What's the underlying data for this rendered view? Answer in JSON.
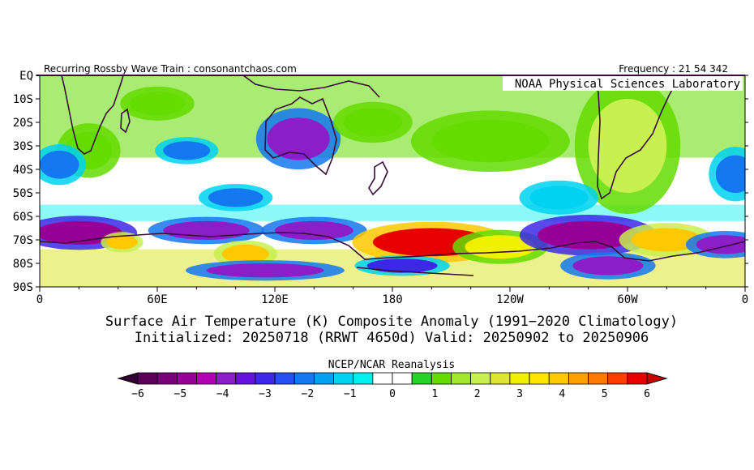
{
  "chart_data": {
    "type": "heatmap",
    "header_left": "Recurring Rossby Wave Train : consonantchaos.com",
    "header_right": "Frequency : 21 54 342",
    "lab": "NOAA Physical Sciences Laboratory",
    "title_line1": "Surface Air Temperature (K) Composite Anomaly (1991−2020 Climatology)",
    "title_line2": "Initialized: 20250718 (RRWT 4650d) Valid: 20250902 to 20250906",
    "source": "NCEP/NCAR Reanalysis",
    "y_ticks": [
      "EQ",
      "10S",
      "20S",
      "30S",
      "40S",
      "50S",
      "60S",
      "70S",
      "80S",
      "90S"
    ],
    "x_ticks": [
      "0",
      "60E",
      "120E",
      "180",
      "120W",
      "60W",
      "0"
    ],
    "colorbar_ticks": [
      "−6",
      "−5",
      "−4",
      "−3",
      "−2",
      "−1",
      "0",
      "1",
      "2",
      "3",
      "4",
      "5",
      "6"
    ],
    "colorbar_colors": [
      "#5a005a",
      "#780078",
      "#960096",
      "#b400b4",
      "#8c1ec8",
      "#6414dc",
      "#3c28e6",
      "#2850f0",
      "#1478f0",
      "#00a0f0",
      "#00d2f0",
      "#00f0f0",
      "#ffffff",
      "#ffffff",
      "#28d228",
      "#64dc00",
      "#a0e632",
      "#c8f050",
      "#dce632",
      "#f0f000",
      "#ffe600",
      "#ffc800",
      "#ffa000",
      "#ff7800",
      "#ff3c00",
      "#e60000"
    ],
    "xlim": [
      0,
      360
    ],
    "ylim": [
      -90,
      0
    ],
    "anomaly_regions": [
      {
        "lon": 20,
        "lat": -67,
        "rx": 22,
        "ry": 5,
        "value": -5
      },
      {
        "lon": 85,
        "lat": -66,
        "rx": 22,
        "ry": 4,
        "value": -4
      },
      {
        "lon": 140,
        "lat": -66,
        "rx": 20,
        "ry": 4,
        "value": -4
      },
      {
        "lon": 105,
        "lat": -76,
        "rx": 12,
        "ry": 4,
        "value": 4
      },
      {
        "lon": 42,
        "lat": -71,
        "rx": 8,
        "ry": 3,
        "value": 4
      },
      {
        "lon": 115,
        "lat": -83,
        "rx": 30,
        "ry": 3,
        "value": -4
      },
      {
        "lon": 200,
        "lat": -71,
        "rx": 30,
        "ry": 6,
        "value": 6
      },
      {
        "lon": 235,
        "lat": -73,
        "rx": 18,
        "ry": 5,
        "value": 3
      },
      {
        "lon": 280,
        "lat": -68,
        "rx": 26,
        "ry": 6,
        "value": -5
      },
      {
        "lon": 290,
        "lat": -81,
        "rx": 18,
        "ry": 4,
        "value": -4
      },
      {
        "lon": 320,
        "lat": -70,
        "rx": 18,
        "ry": 5,
        "value": 4
      },
      {
        "lon": 350,
        "lat": -72,
        "rx": 15,
        "ry": 4,
        "value": -4
      },
      {
        "lon": 185,
        "lat": -81,
        "rx": 18,
        "ry": 3,
        "value": -3
      },
      {
        "lon": 132,
        "lat": -27,
        "rx": 16,
        "ry": 9,
        "value": -4
      },
      {
        "lon": 75,
        "lat": -32,
        "rx": 12,
        "ry": 4,
        "value": -2
      },
      {
        "lon": 100,
        "lat": -52,
        "rx": 14,
        "ry": 4,
        "value": -2
      },
      {
        "lon": 25,
        "lat": -32,
        "rx": 12,
        "ry": 8,
        "value": 1
      },
      {
        "lon": 10,
        "lat": -38,
        "rx": 10,
        "ry": 6,
        "value": -2
      },
      {
        "lon": 300,
        "lat": -30,
        "rx": 20,
        "ry": 20,
        "value": 2
      },
      {
        "lon": 230,
        "lat": -28,
        "rx": 30,
        "ry": 9,
        "value": 1
      },
      {
        "lon": 170,
        "lat": -20,
        "rx": 15,
        "ry": 6,
        "value": 1
      },
      {
        "lon": 60,
        "lat": -12,
        "rx": 14,
        "ry": 5,
        "value": 1
      },
      {
        "lon": 265,
        "lat": -52,
        "rx": 15,
        "ry": 5,
        "value": -1
      },
      {
        "lon": 355,
        "lat": -42,
        "rx": 10,
        "ry": 8,
        "value": -2
      }
    ]
  }
}
